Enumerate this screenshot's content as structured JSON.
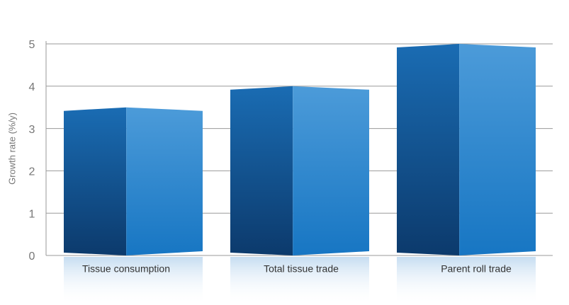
{
  "chart_data": {
    "type": "bar",
    "y_label": "Growth rate (%/y)",
    "categories": [
      "Tissue consumption",
      "Total tissue trade",
      "Parent roll trade"
    ],
    "values": [
      3.5,
      4.0,
      5.0
    ],
    "color": "#1a6fb5",
    "ylim": [
      0,
      5
    ],
    "yticks": [
      0,
      1,
      2,
      3,
      4,
      5
    ],
    "grid": true
  }
}
